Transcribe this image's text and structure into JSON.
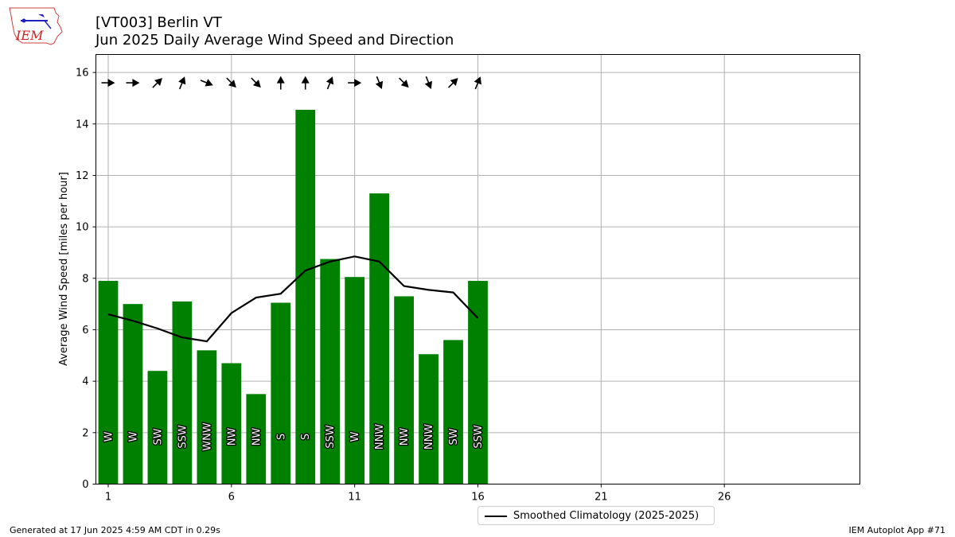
{
  "header": {
    "title_line1": "[VT003] Berlin  VT",
    "title_line2": "Jun 2025 Daily Average Wind Speed and Direction"
  },
  "logo": {
    "text": "IEM",
    "icon": "iem-logo"
  },
  "footer": {
    "generated": "Generated at 17 Jun 2025 4:59 AM CDT in 0.29s",
    "app": "IEM Autoplot App #71"
  },
  "legend": {
    "label": "Smoothed Climatology (2025-2025)"
  },
  "colors": {
    "bar": "#008000",
    "line": "#000000",
    "grid": "#b0b0b0"
  },
  "chart_data": {
    "type": "bar",
    "title": "[VT003] Berlin  VT\nJun 2025 Daily Average Wind Speed and Direction",
    "ylabel": "Average Wind Speed [miles per hour]",
    "xlabel": "",
    "xlim": [
      0.5,
      31.5
    ],
    "ylim": [
      0,
      16.7
    ],
    "xticks": [
      1,
      6,
      11,
      16,
      21,
      26
    ],
    "yticks": [
      0,
      2,
      4,
      6,
      8,
      10,
      12,
      14,
      16
    ],
    "grid": true,
    "legend_position": "below-center",
    "days": [
      1,
      2,
      3,
      4,
      5,
      6,
      7,
      8,
      9,
      10,
      11,
      12,
      13,
      14,
      15,
      16
    ],
    "speed": [
      7.9,
      7.0,
      4.4,
      7.1,
      5.2,
      4.7,
      3.5,
      7.05,
      14.55,
      8.75,
      8.05,
      11.3,
      7.3,
      5.05,
      5.6,
      7.9
    ],
    "direction_label": [
      "W",
      "W",
      "SW",
      "SSW",
      "WNW",
      "NW",
      "NW",
      "S",
      "S",
      "SSW",
      "W",
      "NNW",
      "NW",
      "NNW",
      "SW",
      "SSW"
    ],
    "direction_deg": [
      270,
      270,
      225,
      202,
      292,
      315,
      315,
      180,
      180,
      202,
      270,
      338,
      315,
      338,
      225,
      202
    ],
    "series": [
      {
        "name": "Smoothed Climatology (2025-2025)",
        "type": "line",
        "x": [
          1,
          2,
          3,
          4,
          5,
          6,
          7,
          8,
          9,
          10,
          11,
          12,
          13,
          14,
          15,
          16
        ],
        "values": [
          6.6,
          6.35,
          6.05,
          5.7,
          5.55,
          6.65,
          7.25,
          7.4,
          8.3,
          8.65,
          8.85,
          8.65,
          7.7,
          7.55,
          7.45,
          6.45
        ]
      }
    ]
  }
}
